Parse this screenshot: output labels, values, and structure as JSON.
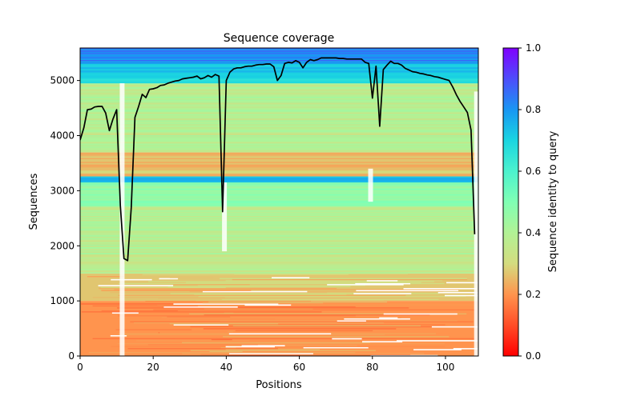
{
  "chart_data": {
    "type": "heatmap",
    "title": "Sequence coverage",
    "xlabel": "Positions",
    "ylabel": "Sequences",
    "xlim": [
      0,
      109
    ],
    "ylim": [
      0,
      5590
    ],
    "xticks": [
      0,
      20,
      40,
      60,
      80,
      100
    ],
    "yticks": [
      0,
      1000,
      2000,
      3000,
      4000,
      5000
    ],
    "colorbar": {
      "label": "Sequence identity to query",
      "colormap": "rainbow",
      "range": [
        0.0,
        1.0
      ],
      "ticks": [
        "0.0",
        "0.2",
        "0.4",
        "0.6",
        "0.8",
        "1.0"
      ]
    },
    "identity_bands": [
      {
        "from_seq": 0,
        "to_seq": 1000,
        "identity": 0.2
      },
      {
        "from_seq": 1000,
        "to_seq": 1500,
        "identity": 0.27
      },
      {
        "from_seq": 1500,
        "to_seq": 2700,
        "identity": 0.38
      },
      {
        "from_seq": 2700,
        "to_seq": 3150,
        "identity": 0.46
      },
      {
        "from_seq": 3150,
        "to_seq": 3260,
        "identity": 0.75
      },
      {
        "from_seq": 3260,
        "to_seq": 3700,
        "identity": 0.27
      },
      {
        "from_seq": 3700,
        "to_seq": 4950,
        "identity": 0.38
      },
      {
        "from_seq": 4950,
        "to_seq": 5300,
        "identity": 0.7
      },
      {
        "from_seq": 5300,
        "to_seq": 5590,
        "identity": 0.83
      }
    ],
    "series": [
      {
        "name": "coverage",
        "color": "#000000",
        "x": [
          0,
          1,
          2,
          3,
          4,
          5,
          6,
          7,
          8,
          9,
          10,
          11,
          12,
          13,
          14,
          15,
          16,
          17,
          18,
          19,
          20,
          21,
          22,
          23,
          24,
          25,
          26,
          27,
          28,
          29,
          30,
          31,
          32,
          33,
          34,
          35,
          36,
          37,
          38,
          39,
          40,
          41,
          42,
          43,
          44,
          45,
          46,
          47,
          48,
          49,
          50,
          51,
          52,
          53,
          54,
          55,
          56,
          57,
          58,
          59,
          60,
          61,
          62,
          63,
          64,
          65,
          66,
          67,
          68,
          69,
          70,
          71,
          72,
          73,
          74,
          75,
          76,
          77,
          78,
          79,
          80,
          81,
          82,
          83,
          84,
          85,
          86,
          87,
          88,
          89,
          90,
          91,
          92,
          93,
          94,
          95,
          96,
          97,
          98,
          99,
          100,
          101,
          102,
          103,
          104,
          105,
          106,
          107,
          108
        ],
        "y": [
          3920,
          4140,
          4470,
          4480,
          4520,
          4530,
          4530,
          4410,
          4090,
          4300,
          4470,
          2730,
          1770,
          1730,
          2690,
          4330,
          4530,
          4750,
          4690,
          4840,
          4850,
          4870,
          4910,
          4920,
          4950,
          4970,
          4990,
          5000,
          5030,
          5040,
          5050,
          5060,
          5080,
          5030,
          5050,
          5090,
          5060,
          5110,
          5080,
          2620,
          5000,
          5150,
          5210,
          5230,
          5230,
          5250,
          5260,
          5260,
          5280,
          5290,
          5290,
          5300,
          5300,
          5250,
          5000,
          5090,
          5310,
          5330,
          5320,
          5360,
          5330,
          5230,
          5330,
          5380,
          5360,
          5380,
          5410,
          5410,
          5410,
          5410,
          5410,
          5400,
          5400,
          5390,
          5390,
          5390,
          5390,
          5390,
          5330,
          5310,
          4680,
          5260,
          4170,
          5200,
          5280,
          5350,
          5310,
          5310,
          5280,
          5220,
          5190,
          5160,
          5150,
          5130,
          5120,
          5100,
          5090,
          5070,
          5060,
          5040,
          5020,
          5000,
          4880,
          4740,
          4620,
          4520,
          4420,
          4100,
          2210
        ]
      }
    ],
    "gap_columns": [
      {
        "position": 11.5,
        "from_seq": 0,
        "to_seq": 4950
      },
      {
        "position": 39.5,
        "from_seq": 1900,
        "to_seq": 3150
      },
      {
        "position": 79.5,
        "from_seq": 2800,
        "to_seq": 3400
      },
      {
        "position": 108.5,
        "from_seq": 0,
        "to_seq": 4800
      }
    ]
  }
}
